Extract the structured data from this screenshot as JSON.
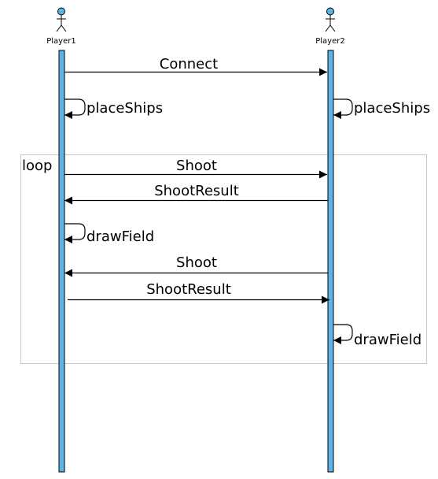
{
  "actors": [
    {
      "name": "Player1",
      "color": "#5cb4e6"
    },
    {
      "name": "Player2",
      "color": "#5cb4e6"
    }
  ],
  "loop": {
    "label": "loop"
  },
  "messages": [
    {
      "label": "Connect",
      "from": "Player1",
      "to": "Player2",
      "type": "message"
    },
    {
      "label": "placeShips",
      "from": "Player1",
      "to": "Player1",
      "type": "self"
    },
    {
      "label": "placeShips",
      "from": "Player2",
      "to": "Player2",
      "type": "self"
    },
    {
      "label": "Shoot",
      "from": "Player1",
      "to": "Player2",
      "type": "message"
    },
    {
      "label": "ShootResult",
      "from": "Player2",
      "to": "Player1",
      "type": "message"
    },
    {
      "label": "drawField",
      "from": "Player1",
      "to": "Player1",
      "type": "self"
    },
    {
      "label": "Shoot",
      "from": "Player2",
      "to": "Player1",
      "type": "message"
    },
    {
      "label": "ShootResult",
      "from": "Player1",
      "to": "Player2",
      "type": "message"
    },
    {
      "label": "drawField",
      "from": "Player2",
      "to": "Player2",
      "type": "self"
    }
  ]
}
